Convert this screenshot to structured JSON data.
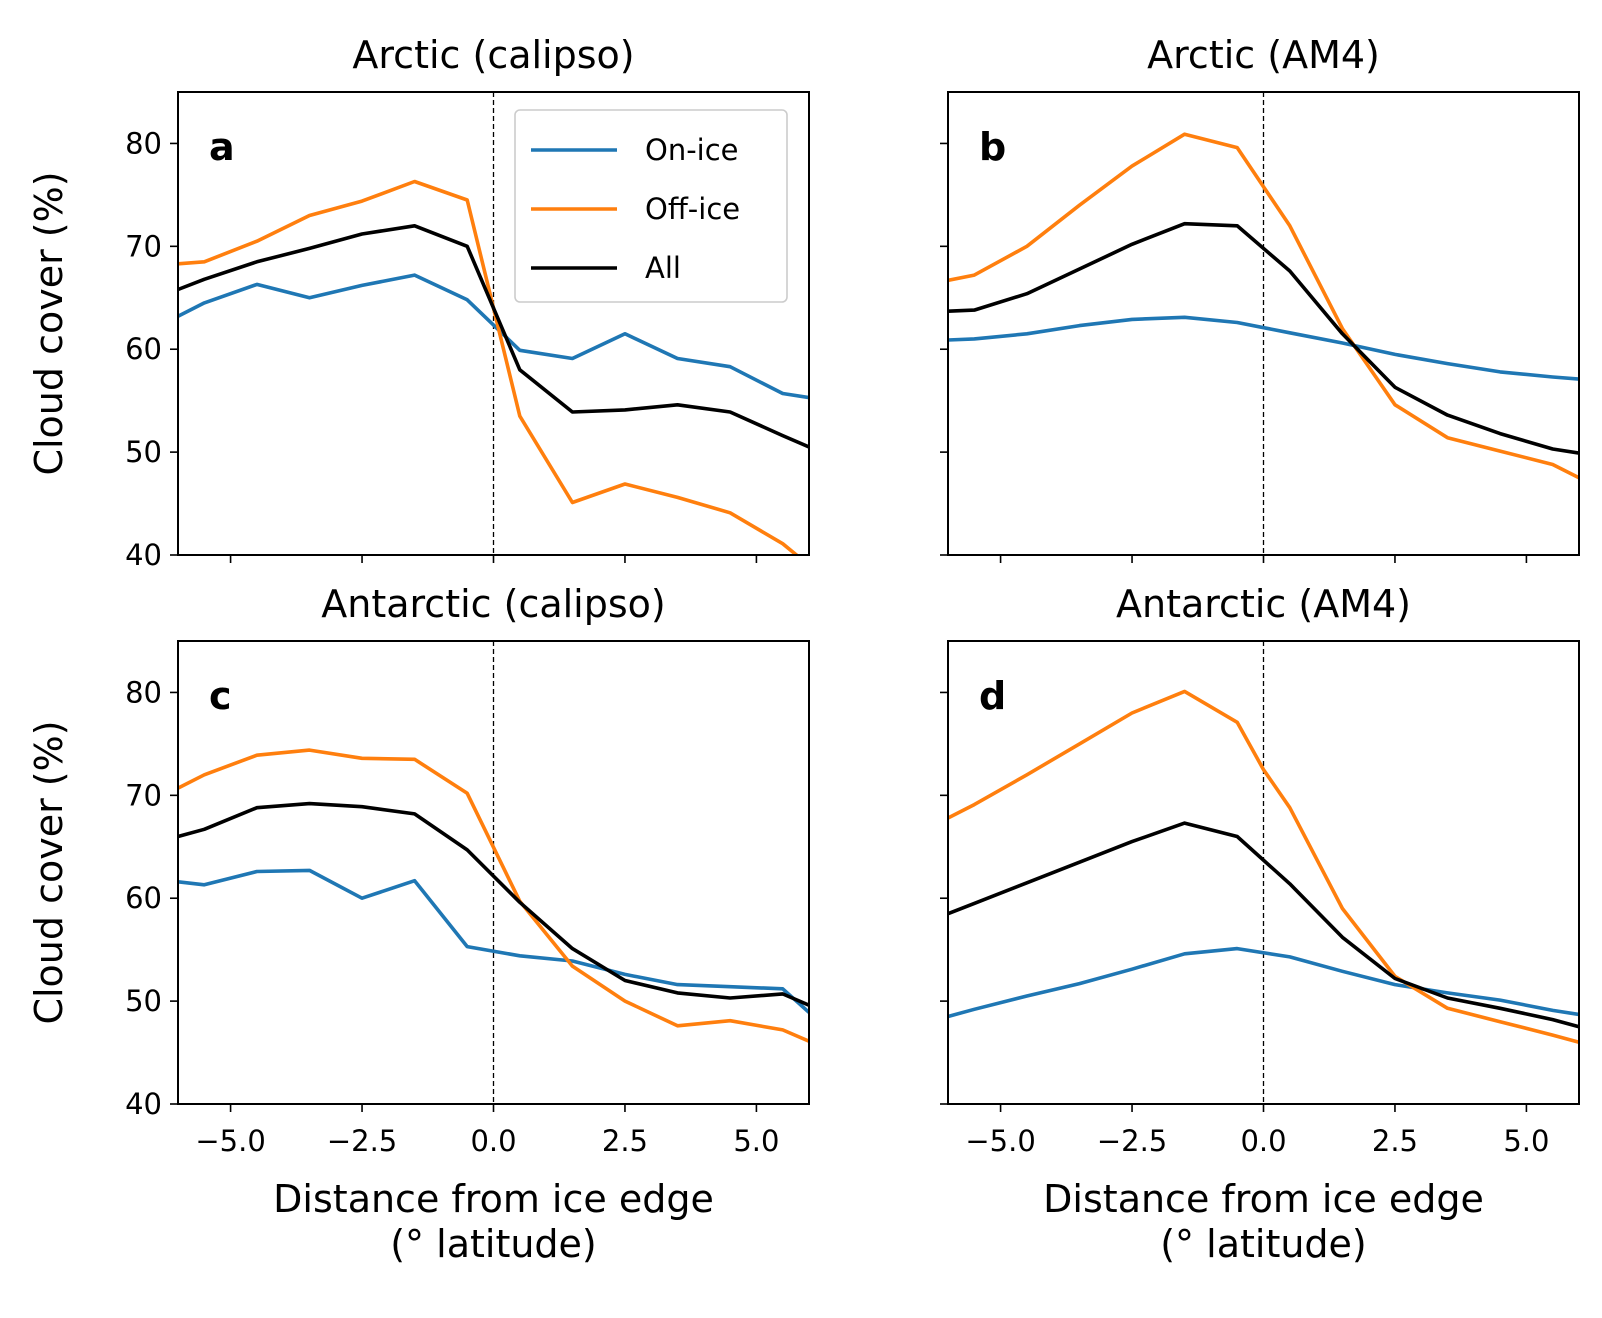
{
  "chart_data": [
    {
      "type": "line",
      "panel_label": "a",
      "title": "Arctic (calipso)",
      "xlabel": "",
      "ylabel": "Cloud cover (%)",
      "xlim": [
        -6,
        6
      ],
      "ylim": [
        40,
        85
      ],
      "xticks": [
        -5.0,
        -2.5,
        0.0,
        2.5,
        5.0
      ],
      "xtick_labels": [
        "",
        "",
        "",
        "",
        ""
      ],
      "yticks": [
        40,
        50,
        60,
        70,
        80
      ],
      "ytick_labels": [
        "40",
        "50",
        "60",
        "70",
        "80"
      ],
      "vline_x": 0,
      "legend": {
        "position": "upper-right",
        "entries": [
          "On-ice",
          "Off-ice",
          "All"
        ]
      },
      "series": [
        {
          "name": "On-ice",
          "color": "#1f77b4",
          "x": [
            -6.0,
            -5.5,
            -4.5,
            -3.5,
            -2.5,
            -1.5,
            -0.5,
            0.5,
            1.5,
            2.5,
            3.5,
            4.5,
            5.5,
            6.0
          ],
          "y": [
            63.2,
            64.5,
            66.3,
            65.0,
            66.2,
            67.2,
            64.8,
            59.9,
            59.1,
            61.5,
            59.1,
            58.3,
            55.7,
            55.3
          ]
        },
        {
          "name": "Off-ice",
          "color": "#ff7f0e",
          "x": [
            -6.0,
            -5.5,
            -4.5,
            -3.5,
            -2.5,
            -1.5,
            -0.5,
            0.5,
            1.5,
            2.5,
            3.5,
            4.5,
            5.5,
            6.0
          ],
          "y": [
            68.3,
            68.5,
            70.5,
            73.0,
            74.4,
            76.3,
            74.5,
            53.5,
            45.1,
            46.9,
            45.6,
            44.1,
            41.1,
            39.0
          ]
        },
        {
          "name": "All",
          "color": "#000000",
          "x": [
            -6.0,
            -5.5,
            -4.5,
            -3.5,
            -2.5,
            -1.5,
            -0.5,
            0.5,
            1.5,
            2.5,
            3.5,
            4.5,
            5.5,
            6.0
          ],
          "y": [
            65.8,
            66.8,
            68.5,
            69.8,
            71.2,
            72.0,
            70.0,
            58.0,
            53.9,
            54.1,
            54.6,
            53.9,
            51.6,
            50.5
          ]
        }
      ]
    },
    {
      "type": "line",
      "panel_label": "b",
      "title": "Arctic (AM4)",
      "xlabel": "",
      "ylabel": "",
      "xlim": [
        -6,
        6
      ],
      "ylim": [
        40,
        85
      ],
      "xticks": [
        -5.0,
        -2.5,
        0.0,
        2.5,
        5.0
      ],
      "xtick_labels": [
        "",
        "",
        "",
        "",
        ""
      ],
      "yticks": [
        40,
        50,
        60,
        70,
        80
      ],
      "ytick_labels": [
        "",
        "",
        "",
        "",
        ""
      ],
      "vline_x": 0,
      "series": [
        {
          "name": "On-ice",
          "color": "#1f77b4",
          "x": [
            -6.0,
            -5.5,
            -4.5,
            -3.5,
            -2.5,
            -1.5,
            -0.5,
            0.5,
            1.5,
            2.5,
            3.5,
            4.5,
            5.5,
            6.0
          ],
          "y": [
            60.9,
            61.0,
            61.5,
            62.3,
            62.9,
            63.1,
            62.6,
            61.6,
            60.6,
            59.5,
            58.6,
            57.8,
            57.3,
            57.1
          ]
        },
        {
          "name": "Off-ice",
          "color": "#ff7f0e",
          "x": [
            -6.0,
            -5.5,
            -4.5,
            -3.5,
            -2.5,
            -1.5,
            -0.5,
            0.0,
            0.5,
            1.5,
            2.5,
            3.5,
            4.5,
            5.5,
            6.0
          ],
          "y": [
            66.7,
            67.2,
            70.0,
            74.0,
            77.8,
            80.9,
            79.6,
            75.8,
            72.0,
            62.0,
            54.6,
            51.4,
            50.1,
            48.8,
            47.5
          ]
        },
        {
          "name": "All",
          "color": "#000000",
          "x": [
            -6.0,
            -5.5,
            -4.5,
            -3.5,
            -2.5,
            -1.5,
            -0.5,
            0.5,
            1.5,
            2.5,
            3.5,
            4.5,
            5.5,
            6.0
          ],
          "y": [
            63.7,
            63.8,
            65.4,
            67.8,
            70.2,
            72.2,
            72.0,
            67.6,
            61.5,
            56.3,
            53.6,
            51.8,
            50.3,
            49.9
          ]
        }
      ]
    },
    {
      "type": "line",
      "panel_label": "c",
      "title": "Antarctic (calipso)",
      "xlabel": "Distance from ice edge",
      "xlabel2": "(° latitude)",
      "ylabel": "Cloud cover (%)",
      "xlim": [
        -6,
        6
      ],
      "ylim": [
        40,
        85
      ],
      "xticks": [
        -5.0,
        -2.5,
        0.0,
        2.5,
        5.0
      ],
      "xtick_labels": [
        "−5.0",
        "−2.5",
        "0.0",
        "2.5",
        "5.0"
      ],
      "yticks": [
        40,
        50,
        60,
        70,
        80
      ],
      "ytick_labels": [
        "40",
        "50",
        "60",
        "70",
        "80"
      ],
      "vline_x": 0,
      "series": [
        {
          "name": "On-ice",
          "color": "#1f77b4",
          "x": [
            -6.0,
            -5.5,
            -4.5,
            -3.5,
            -2.5,
            -1.5,
            -0.5,
            0.5,
            1.5,
            2.5,
            3.5,
            4.5,
            5.5,
            6.0
          ],
          "y": [
            61.6,
            61.3,
            62.6,
            62.7,
            60.0,
            61.7,
            55.3,
            54.4,
            53.9,
            52.6,
            51.6,
            51.4,
            51.2,
            48.9
          ]
        },
        {
          "name": "Off-ice",
          "color": "#ff7f0e",
          "x": [
            -6.0,
            -5.5,
            -4.5,
            -3.5,
            -2.5,
            -1.5,
            -0.5,
            0.5,
            1.5,
            2.5,
            3.5,
            4.5,
            5.5,
            6.0
          ],
          "y": [
            70.7,
            72.0,
            73.9,
            74.4,
            73.6,
            73.5,
            70.2,
            59.7,
            53.4,
            50.0,
            47.6,
            48.1,
            47.2,
            46.1
          ]
        },
        {
          "name": "All",
          "color": "#000000",
          "x": [
            -6.0,
            -5.5,
            -4.5,
            -3.5,
            -2.5,
            -1.5,
            -0.5,
            0.5,
            1.5,
            2.5,
            3.5,
            4.5,
            5.5,
            6.0
          ],
          "y": [
            66.0,
            66.7,
            68.8,
            69.2,
            68.9,
            68.2,
            64.7,
            59.6,
            55.1,
            52.0,
            50.8,
            50.3,
            50.7,
            49.6
          ]
        }
      ]
    },
    {
      "type": "line",
      "panel_label": "d",
      "title": "Antarctic (AM4)",
      "xlabel": "Distance from ice edge",
      "xlabel2": "(° latitude)",
      "ylabel": "",
      "xlim": [
        -6,
        6
      ],
      "ylim": [
        40,
        85
      ],
      "xticks": [
        -5.0,
        -2.5,
        0.0,
        2.5,
        5.0
      ],
      "xtick_labels": [
        "−5.0",
        "−2.5",
        "0.0",
        "2.5",
        "5.0"
      ],
      "yticks": [
        40,
        50,
        60,
        70,
        80
      ],
      "ytick_labels": [
        "",
        "",
        "",
        "",
        ""
      ],
      "vline_x": 0,
      "series": [
        {
          "name": "On-ice",
          "color": "#1f77b4",
          "x": [
            -6.0,
            -5.5,
            -4.5,
            -3.5,
            -2.5,
            -1.5,
            -0.5,
            0.5,
            1.5,
            2.5,
            3.5,
            4.5,
            5.5,
            6.0
          ],
          "y": [
            48.5,
            49.2,
            50.5,
            51.7,
            53.1,
            54.6,
            55.1,
            54.3,
            52.9,
            51.6,
            50.8,
            50.1,
            49.1,
            48.7
          ]
        },
        {
          "name": "Off-ice",
          "color": "#ff7f0e",
          "x": [
            -6.0,
            -5.5,
            -4.5,
            -3.5,
            -2.5,
            -1.5,
            -0.5,
            0.0,
            0.5,
            1.5,
            2.5,
            3.5,
            4.5,
            5.5,
            6.0
          ],
          "y": [
            67.8,
            69.1,
            72.0,
            75.0,
            78.0,
            80.1,
            77.1,
            72.5,
            68.8,
            59.0,
            52.4,
            49.3,
            48.0,
            46.7,
            46.0
          ]
        },
        {
          "name": "All",
          "color": "#000000",
          "x": [
            -6.0,
            -5.5,
            -4.5,
            -3.5,
            -2.5,
            -1.5,
            -0.5,
            0.5,
            1.5,
            2.5,
            3.5,
            4.5,
            5.5,
            6.0
          ],
          "y": [
            58.5,
            59.5,
            61.5,
            63.5,
            65.5,
            67.3,
            66.0,
            61.4,
            56.2,
            52.2,
            50.3,
            49.3,
            48.2,
            47.5
          ]
        }
      ]
    }
  ]
}
